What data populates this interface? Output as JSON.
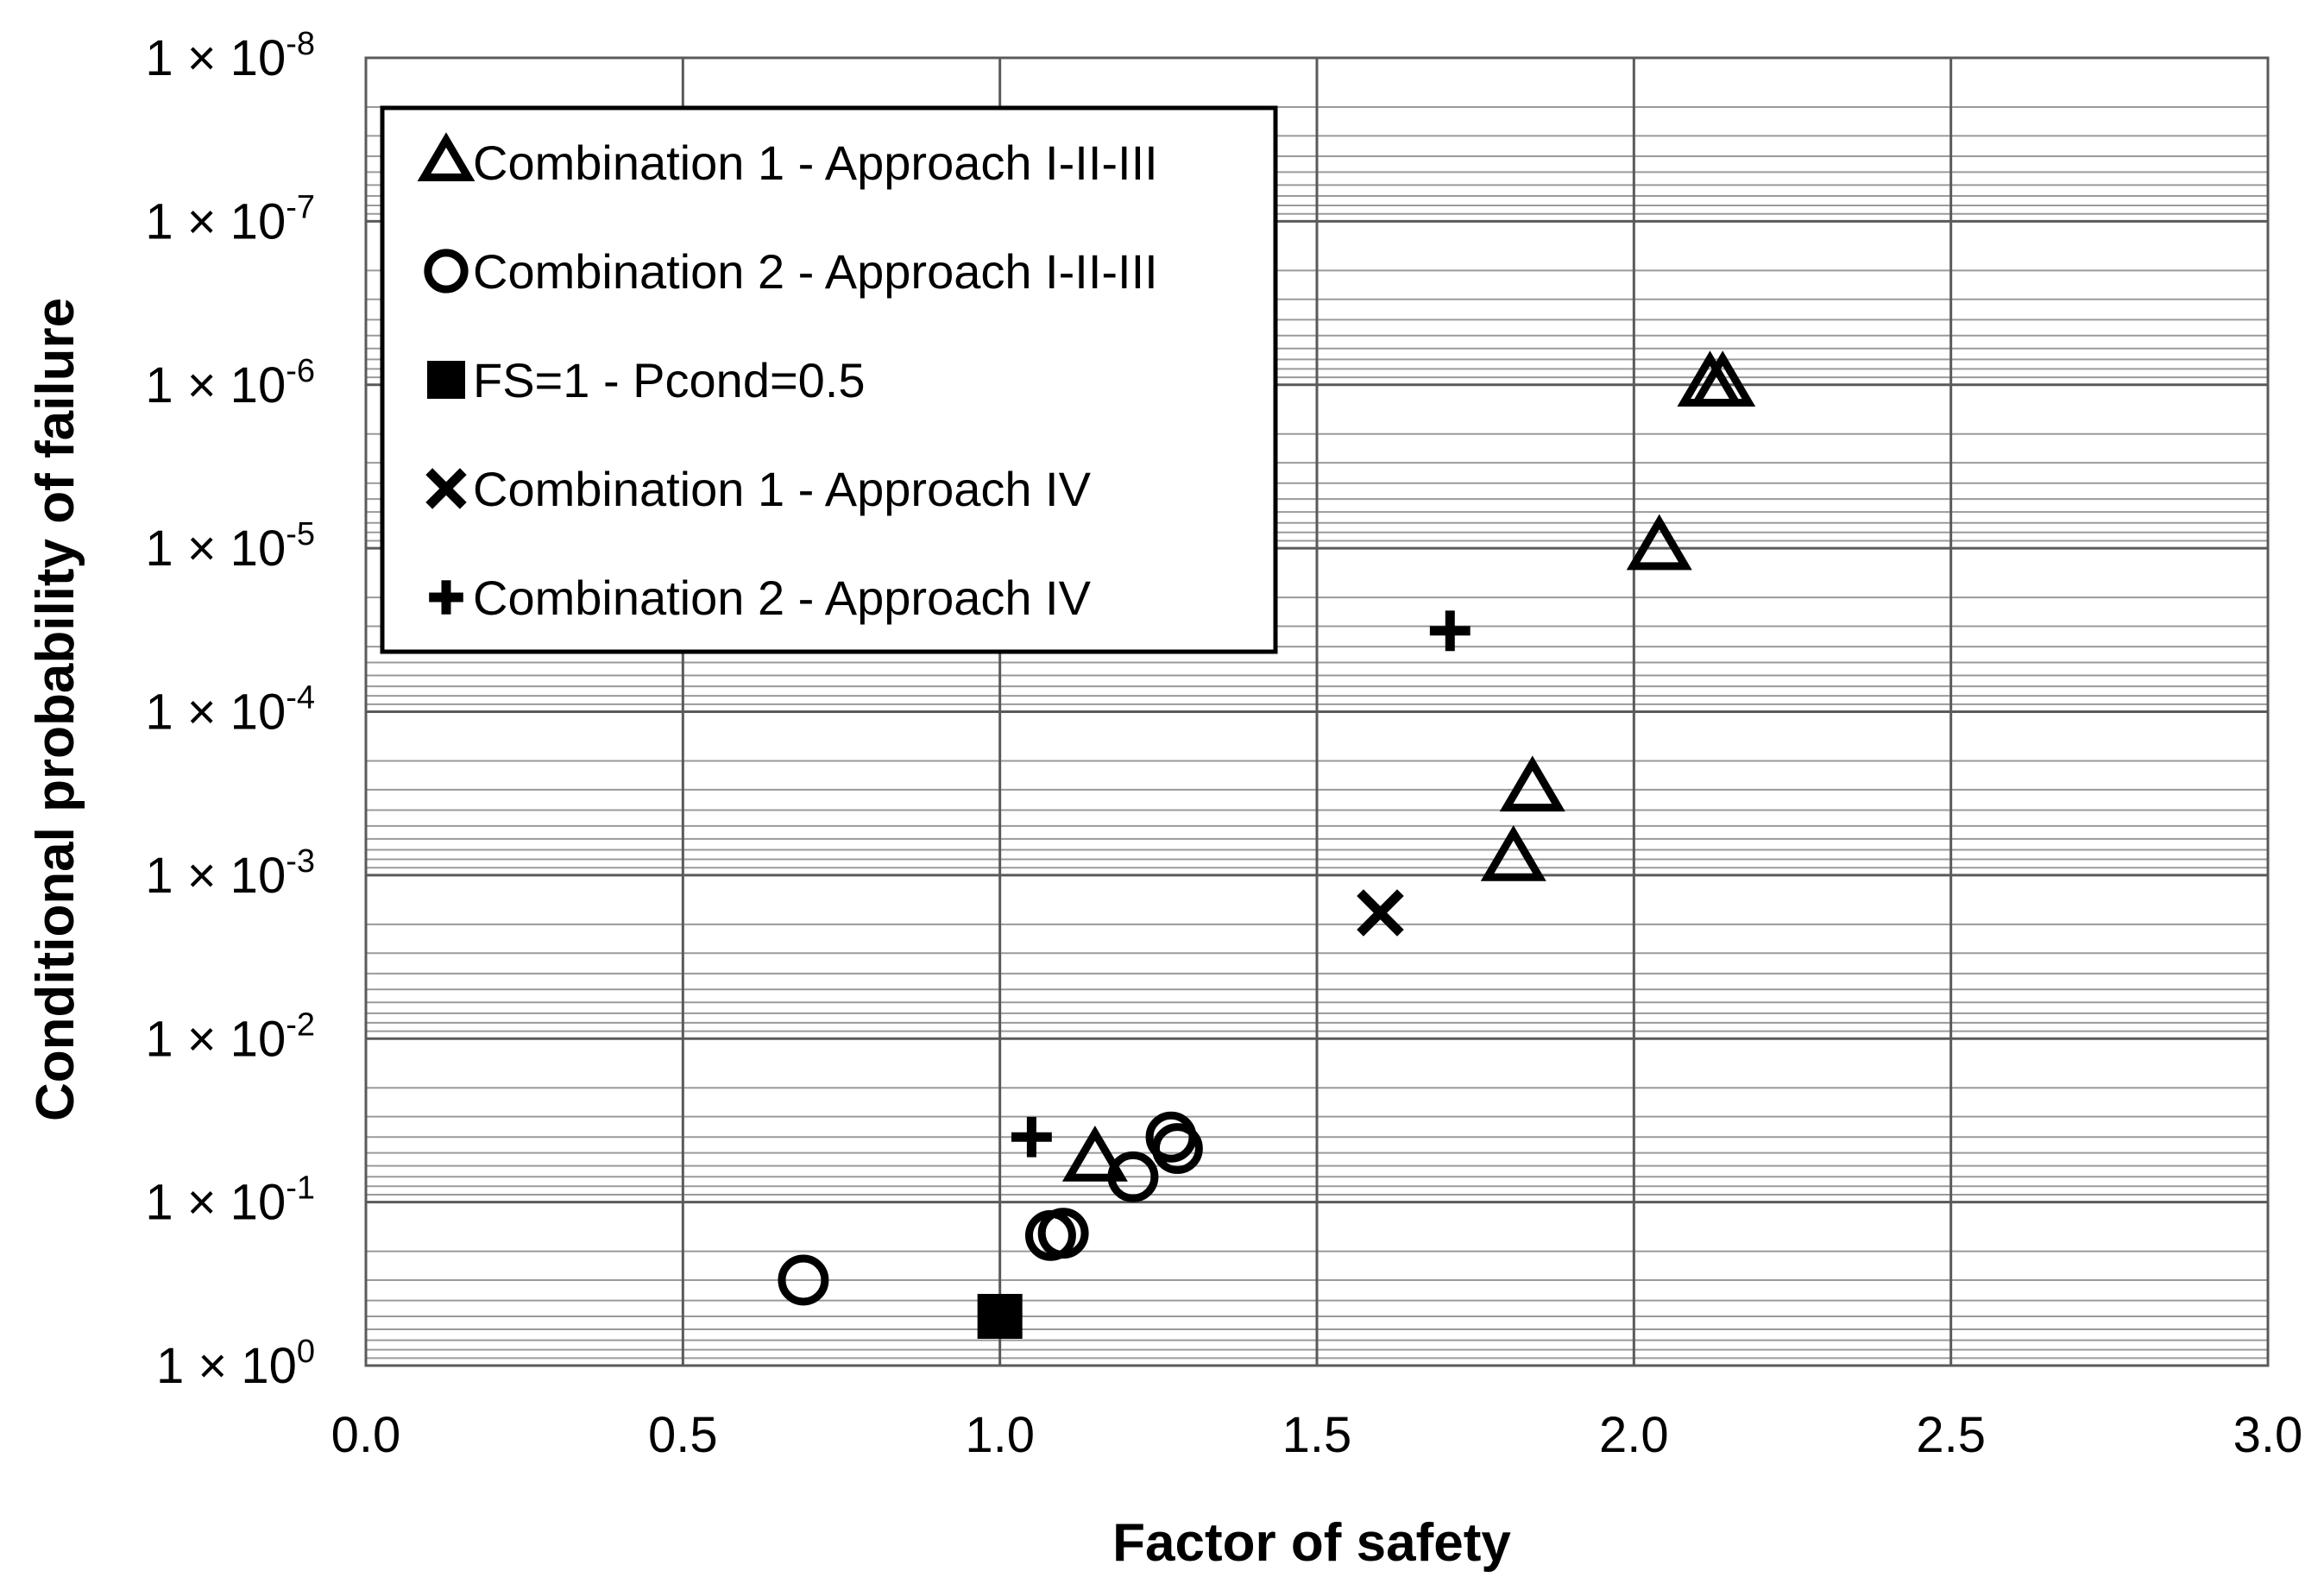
{
  "chart_data": {
    "type": "scatter",
    "title": "",
    "xlabel": "Factor of safety",
    "ylabel": "Conditional probability of failure",
    "xlim": [
      0.0,
      3.0
    ],
    "ylim_exponent": [
      0,
      -8
    ],
    "y_scale": "log (reversed: 1 at bottom, 1e-8 at top)",
    "grid": true,
    "legend_position": "top-left",
    "x_ticks": [
      "0.0",
      "0.5",
      "1.0",
      "1.5",
      "2.0",
      "2.5",
      "3.0"
    ],
    "y_ticks": [
      {
        "base": "1 × 10",
        "exp": "0"
      },
      {
        "base": "1 × 10",
        "exp": "-1"
      },
      {
        "base": "1 × 10",
        "exp": "-2"
      },
      {
        "base": "1 × 10",
        "exp": "-3"
      },
      {
        "base": "1 × 10",
        "exp": "-4"
      },
      {
        "base": "1 × 10",
        "exp": "-5"
      },
      {
        "base": "1 × 10",
        "exp": "-6"
      },
      {
        "base": "1 × 10",
        "exp": "-7"
      },
      {
        "base": "1 × 10",
        "exp": "-8"
      }
    ],
    "series": [
      {
        "name": "Combination 1 - Approach I-II-III",
        "marker": "triangle-open",
        "points": [
          {
            "x": 1.15,
            "y": 0.055
          },
          {
            "x": 1.81,
            "y": 0.0008
          },
          {
            "x": 1.84,
            "y": 0.0003
          },
          {
            "x": 2.04,
            "y": 1e-05
          },
          {
            "x": 2.12,
            "y": 1e-06
          },
          {
            "x": 2.14,
            "y": 1e-06
          }
        ]
      },
      {
        "name": "Combination 2 - Approach I-II-III",
        "marker": "circle-open",
        "points": [
          {
            "x": 0.69,
            "y": 0.3
          },
          {
            "x": 1.08,
            "y": 0.16
          },
          {
            "x": 1.1,
            "y": 0.155
          },
          {
            "x": 1.21,
            "y": 0.07
          },
          {
            "x": 1.27,
            "y": 0.04
          },
          {
            "x": 1.28,
            "y": 0.047
          }
        ]
      },
      {
        "name": "FS=1 - Pcond=0.5",
        "marker": "square-filled",
        "points": [
          {
            "x": 1.0,
            "y": 0.5
          }
        ]
      },
      {
        "name": "Combination 1 - Approach IV",
        "marker": "x",
        "points": [
          {
            "x": 1.6,
            "y": 0.0017
          }
        ]
      },
      {
        "name": "Combination 2 - Approach IV",
        "marker": "plus",
        "points": [
          {
            "x": 1.05,
            "y": 0.04
          },
          {
            "x": 1.71,
            "y": 3.2e-05
          }
        ]
      }
    ]
  }
}
